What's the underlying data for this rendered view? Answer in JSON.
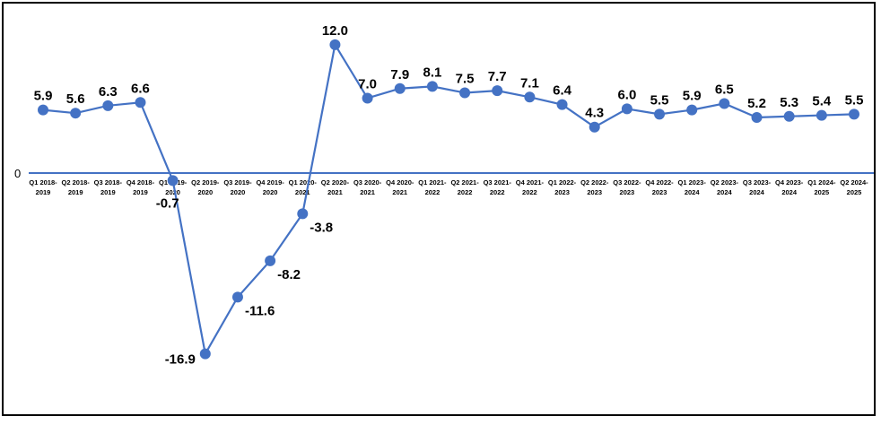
{
  "chart_data": {
    "type": "line",
    "title": "",
    "xlabel": "",
    "ylabel": "",
    "categories": [
      [
        "Q1 2018-",
        "2019"
      ],
      [
        "Q2 2018-",
        "2019"
      ],
      [
        "Q3 2018-",
        "2019"
      ],
      [
        "Q4 2018-",
        "2019"
      ],
      [
        "Q1 2019-",
        "2020"
      ],
      [
        "Q2 2019-",
        "2020"
      ],
      [
        "Q3 2019-",
        "2020"
      ],
      [
        "Q4 2019-",
        "2020"
      ],
      [
        "Q1 2020-",
        "2021"
      ],
      [
        "Q2 2020-",
        "2021"
      ],
      [
        "Q3 2020-",
        "2021"
      ],
      [
        "Q4 2020-",
        "2021"
      ],
      [
        "Q1 2021-",
        "2022"
      ],
      [
        "Q2 2021-",
        "2022"
      ],
      [
        "Q3 2021-",
        "2022"
      ],
      [
        "Q4 2021-",
        "2022"
      ],
      [
        "Q1 2022-",
        "2023"
      ],
      [
        "Q2 2022-",
        "2023"
      ],
      [
        "Q3 2022-",
        "2023"
      ],
      [
        "Q4 2022-",
        "2023"
      ],
      [
        "Q1 2023-",
        "2024"
      ],
      [
        "Q2 2023-",
        "2024"
      ],
      [
        "Q3 2023-",
        "2024"
      ],
      [
        "Q4 2023-",
        "2024"
      ],
      [
        "Q1 2024-",
        "2025"
      ],
      [
        "Q2 2024-",
        "2025"
      ]
    ],
    "values": [
      5.9,
      5.6,
      6.3,
      6.6,
      -0.7,
      -16.9,
      -11.6,
      -8.2,
      -3.8,
      12.0,
      7.0,
      7.9,
      8.1,
      7.5,
      7.7,
      7.1,
      6.4,
      4.3,
      6.0,
      5.5,
      5.9,
      6.5,
      5.2,
      5.3,
      5.4,
      5.5
    ],
    "y_tick_label": "0",
    "ylim": [
      -21,
      14
    ],
    "grid": false,
    "legend": "none",
    "colors": {
      "series": "#4472C4",
      "axis": "#4472C4"
    }
  }
}
